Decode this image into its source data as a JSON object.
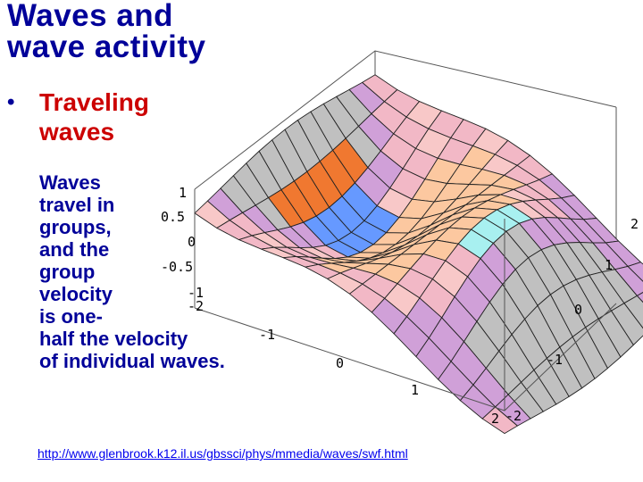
{
  "slide": {
    "title_line1": "Waves and",
    "title_line2": "wave activity",
    "bullet_symbol": "•",
    "bullet_line1": "Traveling",
    "bullet_line2": "waves",
    "body_lines": [
      "Waves",
      "travel in",
      "groups,",
      "and the",
      "group",
      "velocity",
      "is one-",
      "half the velocity",
      "of individual waves."
    ],
    "url": "http://www.glenbrook.k12.il.us/gbssci/phys/mmedia/waves/swf.html"
  },
  "chart_data": {
    "type": "surface",
    "z_ticks": [
      "1",
      "0.5",
      "0",
      "-0.5",
      "-1"
    ],
    "x_ticks": [
      "-2",
      "-1",
      "0",
      "1",
      "2"
    ],
    "y_ticks": [
      "-2",
      "-1",
      "0",
      "1",
      "2"
    ],
    "x_range": [
      -2,
      2
    ],
    "y_range": [
      -2,
      2
    ],
    "z_range": [
      -1,
      1
    ],
    "colors": {
      "light-pink": "#f8c8c8",
      "pink": "#f2b8c6",
      "peach": "#fcc8a0",
      "cyan": "#a8f0f0",
      "orchid": "#d0a0d8",
      "gray": "#c0c0c0",
      "orange": "#f07830",
      "blue": "#6699ff"
    }
  }
}
